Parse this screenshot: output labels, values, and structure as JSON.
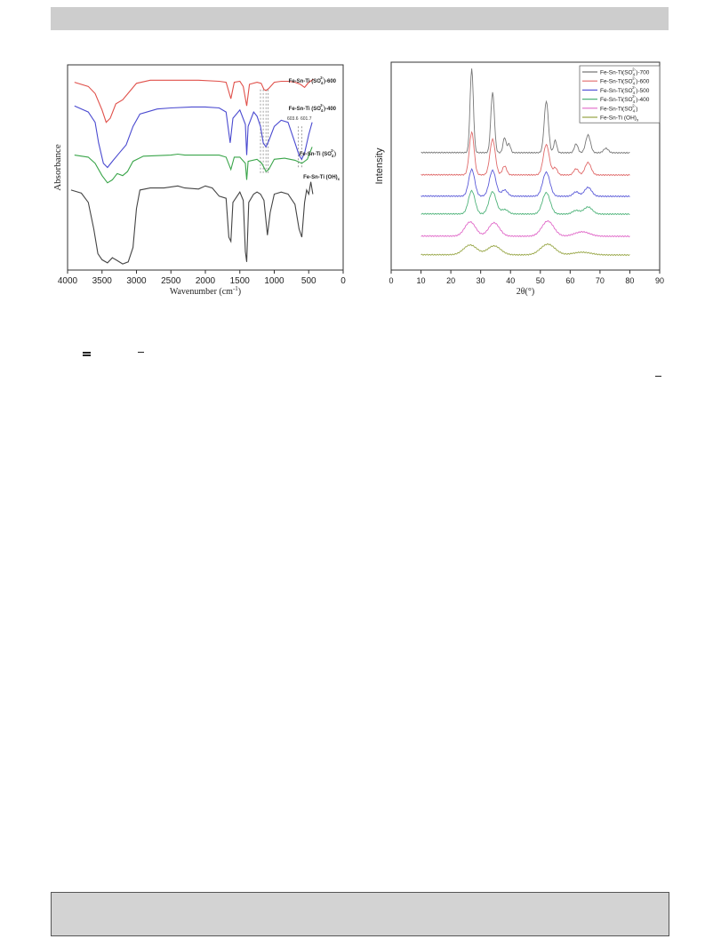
{
  "chart_data": [
    {
      "type": "line",
      "xlabel": "Wavenumber (cm",
      "xlabel_sup": "-1",
      "xlabel_end": ")",
      "ylabel": "Absorbance",
      "xlim": [
        4000,
        0
      ],
      "xticks": [
        4000,
        3500,
        3000,
        2500,
        2000,
        1500,
        1000,
        500,
        0
      ],
      "series": [
        {
          "name": "Fe-Sn-Ti (SO4²⁻)-600",
          "color": "#e0504a",
          "label_parts": [
            "Fe-Sn-Ti (SO",
            "4",
            "2-",
            ")-600"
          ],
          "points": [
            [
              3900,
              0.915
            ],
            [
              3700,
              0.895
            ],
            [
              3600,
              0.86
            ],
            [
              3500,
              0.78
            ],
            [
              3440,
              0.72
            ],
            [
              3380,
              0.74
            ],
            [
              3300,
              0.81
            ],
            [
              3200,
              0.83
            ],
            [
              3100,
              0.87
            ],
            [
              3000,
              0.91
            ],
            [
              2800,
              0.925
            ],
            [
              2500,
              0.925
            ],
            [
              2100,
              0.925
            ],
            [
              1800,
              0.92
            ],
            [
              1700,
              0.915
            ],
            [
              1630,
              0.835
            ],
            [
              1580,
              0.915
            ],
            [
              1500,
              0.92
            ],
            [
              1450,
              0.895
            ],
            [
              1400,
              0.8
            ],
            [
              1360,
              0.905
            ],
            [
              1250,
              0.915
            ],
            [
              1190,
              0.91
            ],
            [
              1150,
              0.88
            ],
            [
              1120,
              0.875
            ],
            [
              1080,
              0.885
            ],
            [
              1000,
              0.915
            ],
            [
              900,
              0.92
            ],
            [
              800,
              0.92
            ],
            [
              700,
              0.915
            ],
            [
              620,
              0.905
            ],
            [
              560,
              0.89
            ],
            [
              500,
              0.915
            ],
            [
              430,
              0.93
            ]
          ]
        },
        {
          "name": "Fe-Sn-Ti (SO4²⁻)-400",
          "color": "#4a4ad0",
          "label_parts": [
            "Fe-Sn-Ti (SO",
            "4",
            "2-",
            ")-400"
          ],
          "annotations": [
            "603.6",
            "601.7"
          ],
          "points": [
            [
              3900,
              0.8
            ],
            [
              3700,
              0.77
            ],
            [
              3600,
              0.72
            ],
            [
              3550,
              0.62
            ],
            [
              3480,
              0.52
            ],
            [
              3420,
              0.5
            ],
            [
              3350,
              0.53
            ],
            [
              3250,
              0.57
            ],
            [
              3150,
              0.61
            ],
            [
              3050,
              0.7
            ],
            [
              2950,
              0.76
            ],
            [
              2700,
              0.785
            ],
            [
              2500,
              0.79
            ],
            [
              2200,
              0.795
            ],
            [
              2000,
              0.795
            ],
            [
              1800,
              0.79
            ],
            [
              1700,
              0.77
            ],
            [
              1640,
              0.62
            ],
            [
              1600,
              0.74
            ],
            [
              1500,
              0.78
            ],
            [
              1420,
              0.71
            ],
            [
              1400,
              0.56
            ],
            [
              1380,
              0.7
            ],
            [
              1300,
              0.77
            ],
            [
              1250,
              0.75
            ],
            [
              1200,
              0.7
            ],
            [
              1160,
              0.62
            ],
            [
              1120,
              0.6
            ],
            [
              1080,
              0.63
            ],
            [
              1000,
              0.7
            ],
            [
              900,
              0.73
            ],
            [
              800,
              0.72
            ],
            [
              700,
              0.62
            ],
            [
              640,
              0.56
            ],
            [
              603,
              0.54
            ],
            [
              560,
              0.57
            ],
            [
              500,
              0.66
            ],
            [
              450,
              0.72
            ]
          ]
        },
        {
          "name": "Fe-Sn-Ti (SO4²⁻)",
          "color": "#3aa54a",
          "label_parts": [
            "Fe-Sn-Ti (SO",
            "4",
            "2-",
            ")"
          ],
          "points": [
            [
              3900,
              0.56
            ],
            [
              3700,
              0.55
            ],
            [
              3600,
              0.52
            ],
            [
              3500,
              0.46
            ],
            [
              3420,
              0.425
            ],
            [
              3350,
              0.44
            ],
            [
              3280,
              0.47
            ],
            [
              3200,
              0.46
            ],
            [
              3130,
              0.48
            ],
            [
              3050,
              0.53
            ],
            [
              2900,
              0.555
            ],
            [
              2500,
              0.56
            ],
            [
              2400,
              0.565
            ],
            [
              2300,
              0.56
            ],
            [
              2100,
              0.56
            ],
            [
              1800,
              0.56
            ],
            [
              1700,
              0.55
            ],
            [
              1630,
              0.49
            ],
            [
              1580,
              0.55
            ],
            [
              1500,
              0.55
            ],
            [
              1420,
              0.52
            ],
            [
              1400,
              0.44
            ],
            [
              1380,
              0.53
            ],
            [
              1250,
              0.54
            ],
            [
              1180,
              0.52
            ],
            [
              1120,
              0.48
            ],
            [
              1080,
              0.49
            ],
            [
              1000,
              0.54
            ],
            [
              850,
              0.545
            ],
            [
              700,
              0.535
            ],
            [
              600,
              0.52
            ],
            [
              520,
              0.54
            ],
            [
              450,
              0.6
            ]
          ]
        },
        {
          "name": "Fe-Sn-Ti (OH)x",
          "color": "#444444",
          "label_parts": [
            "Fe-Sn-Ti (OH)",
            "x"
          ],
          "points": [
            [
              3950,
              0.39
            ],
            [
              3800,
              0.375
            ],
            [
              3700,
              0.33
            ],
            [
              3620,
              0.2
            ],
            [
              3560,
              0.08
            ],
            [
              3500,
              0.05
            ],
            [
              3420,
              0.035
            ],
            [
              3350,
              0.06
            ],
            [
              3300,
              0.05
            ],
            [
              3200,
              0.03
            ],
            [
              3120,
              0.04
            ],
            [
              3050,
              0.11
            ],
            [
              3000,
              0.3
            ],
            [
              2950,
              0.39
            ],
            [
              2800,
              0.4
            ],
            [
              2600,
              0.4
            ],
            [
              2400,
              0.41
            ],
            [
              2300,
              0.4
            ],
            [
              2100,
              0.395
            ],
            [
              2000,
              0.41
            ],
            [
              1900,
              0.4
            ],
            [
              1800,
              0.36
            ],
            [
              1700,
              0.35
            ],
            [
              1660,
              0.16
            ],
            [
              1630,
              0.14
            ],
            [
              1600,
              0.33
            ],
            [
              1500,
              0.38
            ],
            [
              1450,
              0.34
            ],
            [
              1420,
              0.09
            ],
            [
              1400,
              0.04
            ],
            [
              1370,
              0.33
            ],
            [
              1300,
              0.37
            ],
            [
              1250,
              0.38
            ],
            [
              1200,
              0.37
            ],
            [
              1150,
              0.34
            ],
            [
              1100,
              0.17
            ],
            [
              1060,
              0.28
            ],
            [
              1000,
              0.37
            ],
            [
              900,
              0.38
            ],
            [
              800,
              0.37
            ],
            [
              700,
              0.32
            ],
            [
              640,
              0.2
            ],
            [
              600,
              0.16
            ],
            [
              560,
              0.33
            ],
            [
              530,
              0.39
            ],
            [
              500,
              0.37
            ],
            [
              470,
              0.43
            ],
            [
              440,
              0.37
            ]
          ]
        }
      ]
    },
    {
      "type": "line",
      "xlabel": "2θ(°)",
      "ylabel": "Intensity",
      "xlim": [
        0,
        90
      ],
      "xticks": [
        0,
        10,
        20,
        30,
        40,
        50,
        60,
        70,
        80,
        90
      ],
      "legend": "top-right",
      "series": [
        {
          "name": "Fe-Sn-Ti(SO4²⁻)-700",
          "color": "#777777",
          "label_parts": [
            "Fe-Sn-Ti(SO",
            "4",
            "2-",
            ")-700"
          ]
        },
        {
          "name": "Fe-Sn-Ti(SO4²⁻)-600",
          "color": "#e06a6a",
          "label_parts": [
            "Fe-Sn-Ti(SO",
            "4",
            "2-",
            ")-600"
          ]
        },
        {
          "name": "Fe-Sn-Ti(SO4²⁻)-500",
          "color": "#5a5ad8",
          "label_parts": [
            "Fe-Sn-Ti(SO",
            "4",
            "2-",
            ")-500"
          ]
        },
        {
          "name": "Fe-Sn-Ti(SO4²⁻)-400",
          "color": "#4fb37a",
          "label_parts": [
            "Fe-Sn-Ti(SO",
            "4",
            "2-",
            ")-400"
          ]
        },
        {
          "name": "Fe-Sn-Ti(SO4²⁻)",
          "color": "#e068c8",
          "label_parts": [
            "Fe-Sn-Ti(SO",
            "4",
            "2-",
            ")"
          ]
        },
        {
          "name": "Fe-Sn-Ti (OH)x",
          "color": "#9aa84a",
          "label_parts": [
            "Fe-Sn-Ti (OH)",
            "x"
          ]
        }
      ]
    }
  ]
}
